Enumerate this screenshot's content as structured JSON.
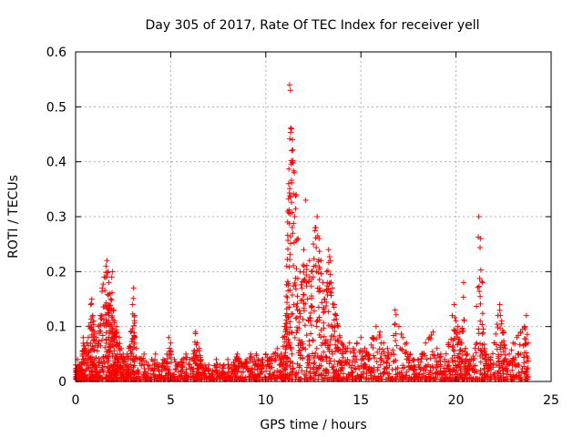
{
  "chart_data": {
    "type": "scatter",
    "title": "Day 305 of 2017, Rate Of TEC Index for receiver yell",
    "xlabel": "GPS time / hours",
    "ylabel": "ROTI / TECUs",
    "xlim": [
      0,
      25
    ],
    "ylim": [
      0,
      0.6
    ],
    "xticks": [
      "0",
      "5",
      "10",
      "15",
      "20",
      "25"
    ],
    "yticks": [
      "0",
      "0.1",
      "0.2",
      "0.3",
      "0.4",
      "0.5",
      "0.6"
    ],
    "grid": true,
    "marker": "+",
    "color": "#ff0000",
    "series": [
      {
        "x": [
          0.0,
          0.05,
          0.1,
          0.15,
          0.2,
          0.25,
          0.3,
          0.35,
          0.4,
          0.5,
          0.6,
          0.7,
          0.8,
          0.85,
          0.9,
          0.95,
          1.0,
          1.1,
          1.2,
          1.3,
          1.4,
          1.5,
          1.6,
          1.65,
          1.7,
          1.75,
          1.8,
          1.85,
          1.9,
          1.95,
          2.0,
          2.05,
          2.1,
          2.15,
          2.2,
          2.3,
          2.4,
          2.5,
          2.6,
          2.7,
          2.8,
          2.9,
          3.0,
          3.05,
          3.1,
          3.2,
          3.4,
          3.6,
          3.8,
          4.0,
          4.2,
          4.4,
          4.6,
          4.8,
          4.9,
          5.0,
          5.2,
          5.4,
          5.6,
          5.8,
          6.0,
          6.2,
          6.3,
          6.4,
          6.5,
          6.6,
          6.8,
          7.0,
          7.2,
          7.4,
          7.6,
          7.8,
          8.0,
          8.2,
          8.4,
          8.5,
          8.6,
          8.8,
          9.0,
          9.2,
          9.4,
          9.5,
          9.6,
          9.8,
          10.0,
          10.2,
          10.4,
          10.6,
          10.8,
          10.9,
          11.0,
          11.05,
          11.1,
          11.15,
          11.2,
          11.25,
          11.3,
          11.35,
          11.4,
          11.5,
          11.6,
          11.7,
          11.8,
          11.9,
          12.0,
          12.1,
          12.2,
          12.3,
          12.4,
          12.5,
          12.6,
          12.7,
          12.8,
          12.9,
          13.0,
          13.1,
          13.2,
          13.3,
          13.4,
          13.5,
          13.6,
          13.7,
          13.8,
          13.9,
          14.0,
          14.2,
          14.4,
          14.6,
          14.8,
          15.0,
          15.2,
          15.4,
          15.6,
          15.8,
          16.0,
          16.2,
          16.4,
          16.6,
          16.8,
          17.0,
          17.2,
          17.4,
          17.6,
          17.8,
          18.0,
          18.2,
          18.4,
          18.6,
          18.8,
          19.0,
          19.2,
          19.4,
          19.6,
          19.8,
          19.9,
          20.0,
          20.1,
          20.2,
          20.3,
          20.4,
          20.5,
          20.6,
          20.8,
          21.0,
          21.2,
          21.3,
          21.4,
          21.5,
          21.6,
          21.8,
          22.0,
          22.2,
          22.3,
          22.4,
          22.5,
          22.6,
          22.8,
          23.0,
          23.2,
          23.4,
          23.6,
          23.7,
          23.8
        ],
        "y": [
          0.03,
          0.02,
          0.04,
          0.02,
          0.03,
          0.03,
          0.02,
          0.05,
          0.08,
          0.06,
          0.07,
          0.1,
          0.14,
          0.15,
          0.12,
          0.11,
          0.09,
          0.08,
          0.1,
          0.12,
          0.17,
          0.19,
          0.21,
          0.22,
          0.2,
          0.18,
          0.16,
          0.15,
          0.19,
          0.2,
          0.13,
          0.11,
          0.09,
          0.1,
          0.07,
          0.08,
          0.06,
          0.05,
          0.04,
          0.05,
          0.06,
          0.09,
          0.14,
          0.17,
          0.12,
          0.06,
          0.04,
          0.05,
          0.03,
          0.04,
          0.05,
          0.03,
          0.04,
          0.05,
          0.08,
          0.07,
          0.04,
          0.03,
          0.04,
          0.05,
          0.04,
          0.05,
          0.09,
          0.07,
          0.06,
          0.04,
          0.03,
          0.03,
          0.02,
          0.04,
          0.03,
          0.03,
          0.04,
          0.03,
          0.04,
          0.05,
          0.04,
          0.03,
          0.04,
          0.05,
          0.04,
          0.05,
          0.04,
          0.04,
          0.05,
          0.04,
          0.05,
          0.06,
          0.05,
          0.08,
          0.1,
          0.12,
          0.21,
          0.31,
          0.36,
          0.54,
          0.53,
          0.46,
          0.44,
          0.38,
          0.34,
          0.26,
          0.2,
          0.17,
          0.24,
          0.33,
          0.15,
          0.22,
          0.2,
          0.25,
          0.28,
          0.3,
          0.26,
          0.22,
          0.18,
          0.15,
          0.2,
          0.24,
          0.22,
          0.17,
          0.14,
          0.12,
          0.1,
          0.08,
          0.07,
          0.06,
          0.07,
          0.06,
          0.07,
          0.08,
          0.06,
          0.05,
          0.08,
          0.1,
          0.09,
          0.07,
          0.06,
          0.05,
          0.13,
          0.1,
          0.08,
          0.07,
          0.05,
          0.04,
          0.04,
          0.05,
          0.07,
          0.08,
          0.09,
          0.06,
          0.05,
          0.04,
          0.07,
          0.12,
          0.14,
          0.11,
          0.1,
          0.09,
          0.07,
          0.18,
          0.06,
          0.05,
          0.04,
          0.06,
          0.3,
          0.26,
          0.18,
          0.06,
          0.05,
          0.04,
          0.07,
          0.12,
          0.14,
          0.11,
          0.09,
          0.06,
          0.05,
          0.07,
          0.08,
          0.09,
          0.1,
          0.12,
          0.07
        ]
      }
    ]
  }
}
